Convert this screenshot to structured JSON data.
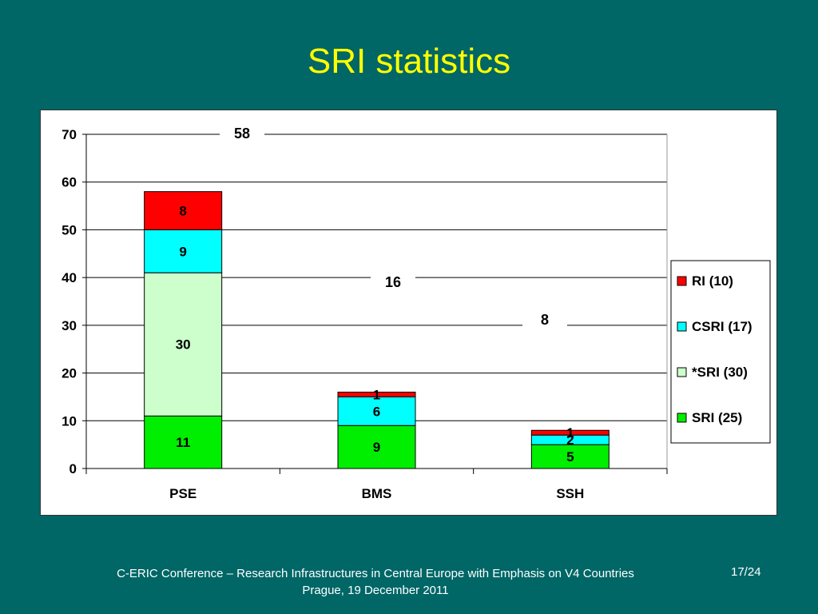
{
  "slide": {
    "title": "SRI statistics",
    "footer_line1": "C-ERIC Conference – Research Infrastructures in Central Europe with Emphasis on V4 Countries",
    "footer_line2": "Prague, 19 December 2011",
    "page": "17/24"
  },
  "chart_data": {
    "type": "bar",
    "stacked": true,
    "categories": [
      "PSE",
      "BMS",
      "SSH"
    ],
    "series": [
      {
        "name": "SRI (25)",
        "values": [
          11,
          9,
          5
        ],
        "color": "#00ee00"
      },
      {
        "name": "*SRI (30)",
        "values": [
          30,
          0,
          0
        ],
        "color": "#ccffcc"
      },
      {
        "name": "CSRI (17)",
        "values": [
          9,
          6,
          2
        ],
        "color": "#00ffff"
      },
      {
        "name": "RI (10)",
        "values": [
          8,
          1,
          1
        ],
        "color": "#ff0000"
      }
    ],
    "totals": [
      58,
      16,
      8
    ],
    "yticks": [
      0,
      10,
      20,
      30,
      40,
      50,
      60,
      70
    ],
    "ylim": [
      0,
      70
    ],
    "grid": true,
    "legend": "right"
  }
}
